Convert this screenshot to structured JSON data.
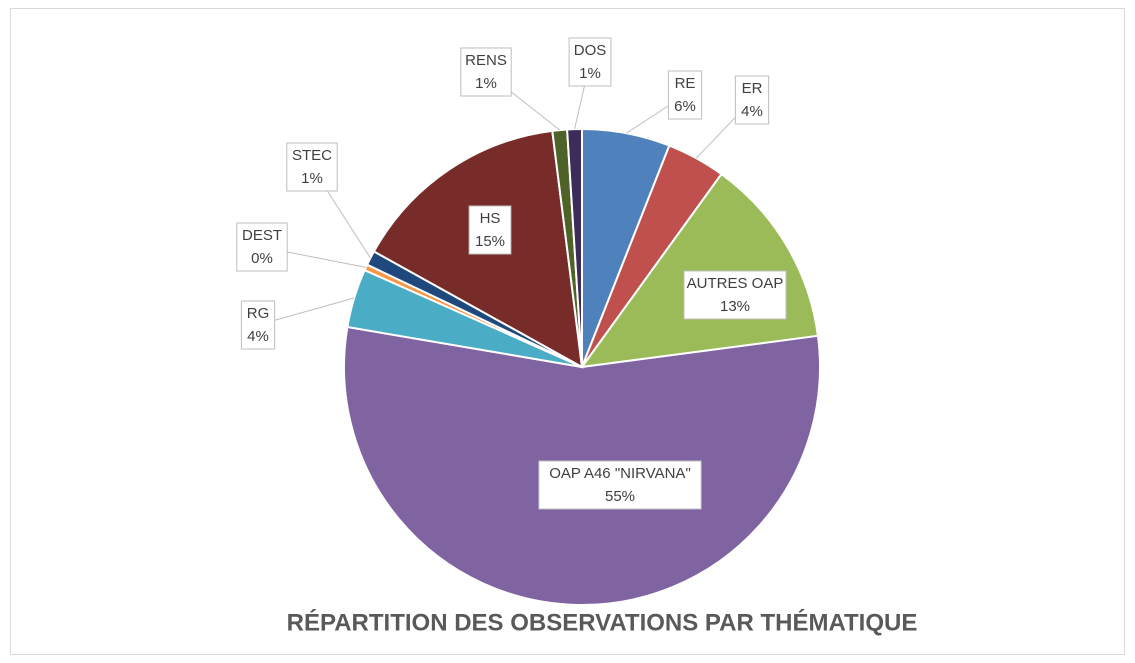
{
  "chart_data": {
    "type": "pie",
    "title": "RÉPARTITION DES OBSERVATIONS PAR THÉMATIQUE",
    "categories": [
      "RE",
      "ER",
      "AUTRES OAP",
      "OAP A46 \"NIRVANA\"",
      "RG",
      "DEST",
      "STEC",
      "HS",
      "RENS",
      "DOS"
    ],
    "values": [
      6,
      4,
      13,
      55,
      4,
      0.4,
      1,
      15,
      1,
      1
    ],
    "value_labels": [
      "6%",
      "4%",
      "13%",
      "55%",
      "4%",
      "0%",
      "1%",
      "15%",
      "1%",
      "1%"
    ],
    "colors": [
      "#4f81bd",
      "#c0504d",
      "#9bbb59",
      "#8064a2",
      "#4bacc6",
      "#f79646",
      "#1f497d",
      "#772c2a",
      "#4f6228",
      "#3b2c5a"
    ]
  }
}
